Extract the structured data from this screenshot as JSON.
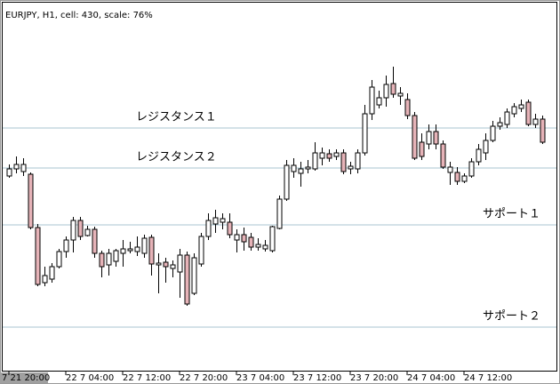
{
  "chart_data": {
    "type": "candlestick",
    "title": "EURJPY, H1, cell: 430, scale: 76%",
    "categories": [
      "7 21 20:00",
      null,
      null,
      null,
      null,
      null,
      null,
      null,
      "22 7 04:00",
      null,
      null,
      null,
      null,
      null,
      null,
      null,
      "22 7 12:00",
      null,
      null,
      null,
      null,
      null,
      null,
      null,
      "22 7 20:00",
      null,
      null,
      null,
      null,
      null,
      null,
      null,
      "23 7 04:00",
      null,
      null,
      null,
      null,
      null,
      null,
      null,
      "23 7 12:00",
      null,
      null,
      null,
      null,
      null,
      null,
      null,
      "23 7 20:00",
      null,
      null,
      null,
      null,
      null,
      null,
      null,
      "24 7 04:00",
      null,
      null,
      null,
      null,
      null,
      null,
      null,
      "24 7 12:00",
      null,
      null,
      null,
      null,
      null,
      null,
      null,
      null,
      null,
      null,
      null
    ],
    "open": [
      220,
      228,
      225,
      222,
      162,
      100,
      104,
      118,
      135,
      148,
      170,
      153,
      160,
      133,
      120,
      124,
      133,
      136,
      135,
      133,
      151,
      120,
      123,
      116,
      112,
      131,
      88,
      121,
      152,
      166,
      168,
      168,
      148,
      154,
      151,
      140,
      138,
      136,
      161,
      194,
      225,
      223,
      228,
      228,
      240,
      245,
      242,
      246,
      228,
      228,
      246,
      290,
      300,
      308,
      324,
      310,
      306,
      288,
      258,
      256,
      270,
      256,
      224,
      224,
      214,
      220,
      236,
      246,
      260,
      276,
      278,
      290,
      296,
      303,
      278,
      284
    ],
    "high": [
      233,
      242,
      240,
      224,
      166,
      118,
      122,
      138,
      152,
      174,
      174,
      164,
      163,
      136,
      138,
      138,
      148,
      146,
      152,
      154,
      154,
      133,
      128,
      125,
      138,
      135,
      133,
      156,
      178,
      182,
      178,
      178,
      160,
      162,
      156,
      150,
      148,
      164,
      198,
      238,
      240,
      236,
      238,
      258,
      252,
      250,
      250,
      250,
      236,
      250,
      300,
      328,
      316,
      333,
      343,
      320,
      313,
      292,
      268,
      278,
      278,
      260,
      236,
      230,
      223,
      240,
      256,
      268,
      282,
      286,
      296,
      302,
      306,
      306,
      290,
      288
    ],
    "low": [
      218,
      223,
      220,
      160,
      96,
      96,
      100,
      116,
      128,
      134,
      148,
      152,
      128,
      106,
      108,
      118,
      118,
      133,
      130,
      128,
      108,
      88,
      100,
      106,
      83,
      74,
      86,
      118,
      148,
      156,
      160,
      150,
      134,
      136,
      136,
      136,
      135,
      134,
      160,
      192,
      218,
      208,
      223,
      226,
      232,
      236,
      238,
      222,
      222,
      223,
      243,
      283,
      296,
      298,
      308,
      300,
      284,
      238,
      238,
      250,
      250,
      228,
      210,
      210,
      212,
      218,
      232,
      238,
      258,
      272,
      274,
      286,
      292,
      276,
      274,
      256
    ],
    "close": [
      228,
      233,
      233,
      162,
      98,
      108,
      118,
      135,
      148,
      170,
      152,
      160,
      133,
      118,
      133,
      136,
      138,
      138,
      140,
      150,
      121,
      122,
      118,
      120,
      131,
      76,
      128,
      152,
      170,
      173,
      172,
      154,
      154,
      146,
      140,
      143,
      142,
      163,
      194,
      232,
      232,
      228,
      230,
      246,
      246,
      240,
      246,
      225,
      231,
      246,
      290,
      320,
      308,
      323,
      312,
      313,
      288,
      240,
      242,
      270,
      256,
      230,
      230,
      214,
      220,
      236,
      250,
      260,
      276,
      280,
      292,
      298,
      300,
      278,
      284,
      258
    ],
    "colors": {
      "up": "#ffffff",
      "down": "#e6b3b8"
    },
    "ylim": [
      0,
      410
    ],
    "levels": [
      {
        "label": "レジスタンス１",
        "value": 274
      },
      {
        "label": "レジスタンス２",
        "value": 229
      },
      {
        "label": "サポート１",
        "value": 165
      },
      {
        "label": "サポート２",
        "value": 50
      }
    ]
  }
}
